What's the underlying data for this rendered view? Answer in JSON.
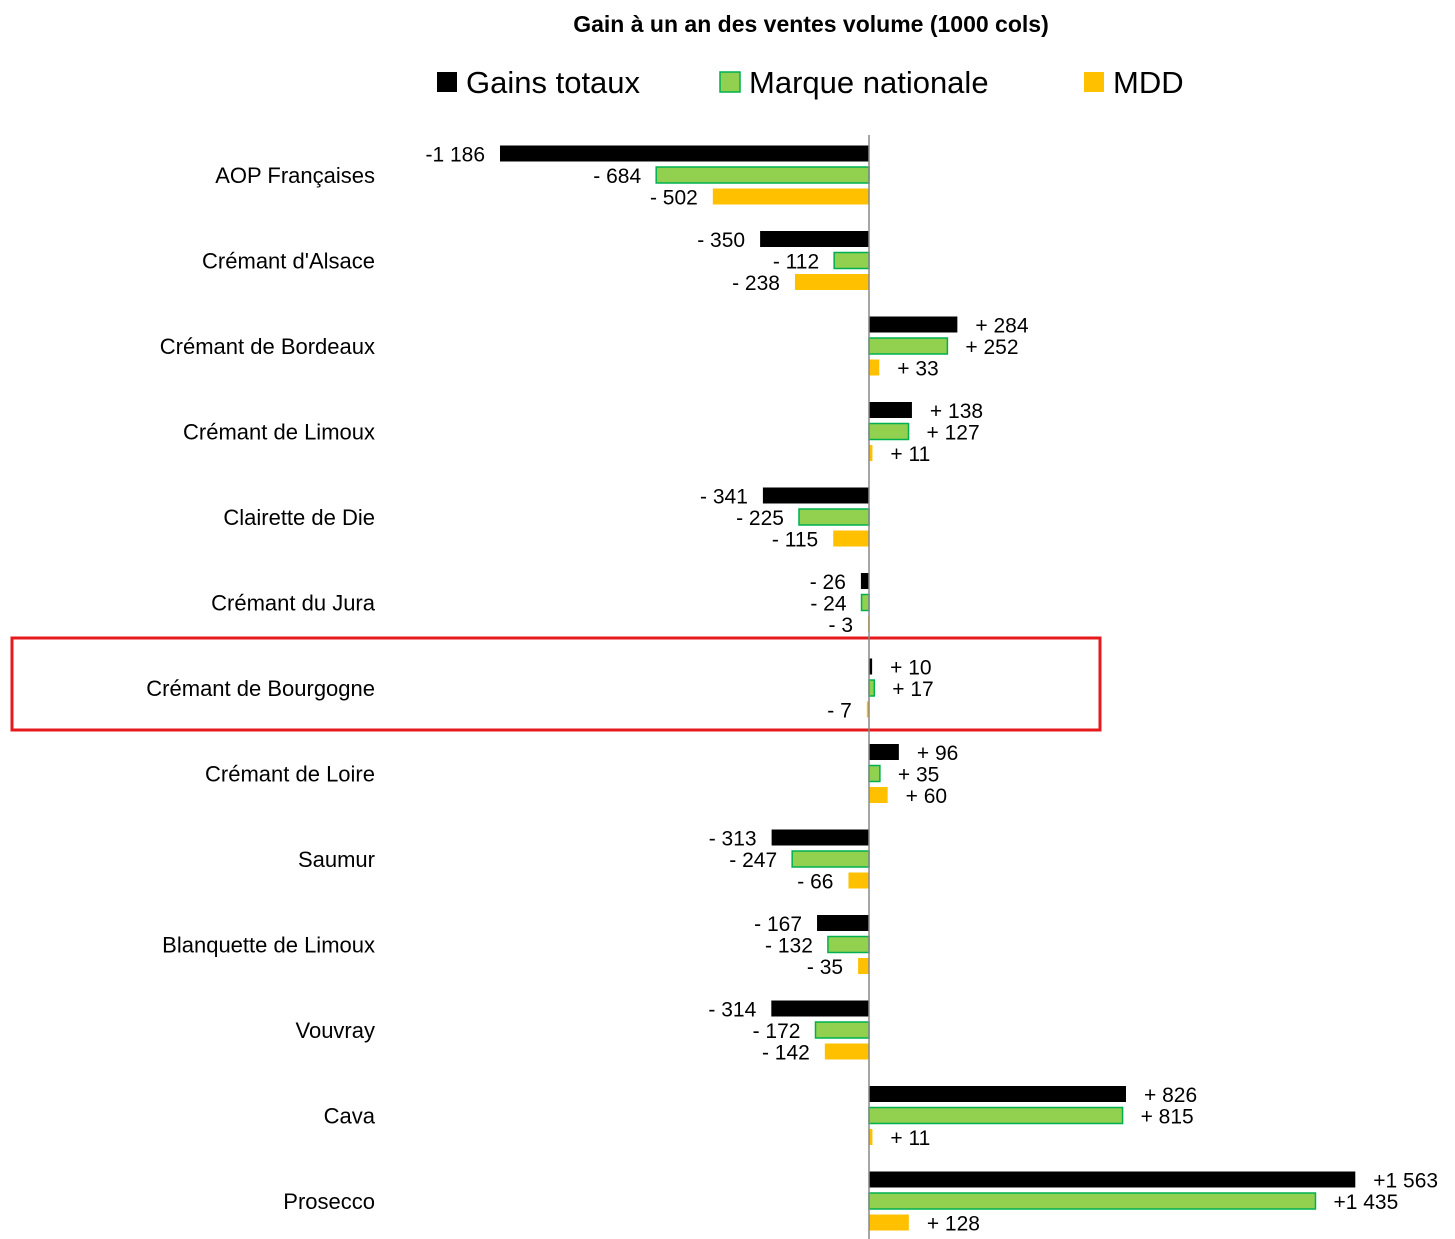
{
  "chart_data": {
    "type": "bar",
    "orientation": "horizontal",
    "title": "Gain à un an des ventes volume (1000 cols)",
    "legend_position": "top",
    "grid": false,
    "xlim": [
      -1186,
      1563
    ],
    "categories": [
      "AOP Françaises",
      "Crémant d'Alsace",
      "Crémant de Bordeaux",
      "Crémant de Limoux",
      "Clairette de Die",
      "Crémant du Jura",
      "Crémant de Bourgogne",
      "Crémant de Loire",
      "Saumur",
      "Blanquette de Limoux",
      "Vouvray",
      "Cava",
      "Prosecco"
    ],
    "highlighted_category": "Crémant de Bourgogne",
    "highlight_color": "#e41a1c",
    "series": [
      {
        "name": "Gains totaux",
        "color": "#000000",
        "values": [
          -1186,
          -350,
          284,
          138,
          -341,
          -26,
          10,
          96,
          -313,
          -167,
          -314,
          826,
          1563
        ],
        "labels": [
          "-1 186",
          "- 350",
          "+ 284",
          "+ 138",
          "- 341",
          "- 26",
          "+ 10",
          "+ 96",
          "- 313",
          "- 167",
          "- 314",
          "+ 826",
          "+1 563"
        ]
      },
      {
        "name": "Marque nationale",
        "color": "#92d050",
        "border": "#00b050",
        "values": [
          -684,
          -112,
          252,
          127,
          -225,
          -24,
          17,
          35,
          -247,
          -132,
          -172,
          815,
          1435
        ],
        "labels": [
          "- 684",
          "- 112",
          "+ 252",
          "+ 127",
          "- 225",
          "- 24",
          "+ 17",
          "+ 35",
          "- 247",
          "- 132",
          "- 172",
          "+ 815",
          "+1 435"
        ]
      },
      {
        "name": "MDD",
        "color": "#ffc000",
        "values": [
          -502,
          -238,
          33,
          11,
          -115,
          -3,
          -7,
          60,
          -66,
          -35,
          -142,
          11,
          128
        ],
        "labels": [
          "- 502",
          "- 238",
          "+ 33",
          "+ 11",
          "- 115",
          "- 3",
          "- 7",
          "+ 60",
          "- 66",
          "- 35",
          "- 142",
          "+ 11",
          "+ 128"
        ]
      }
    ]
  }
}
